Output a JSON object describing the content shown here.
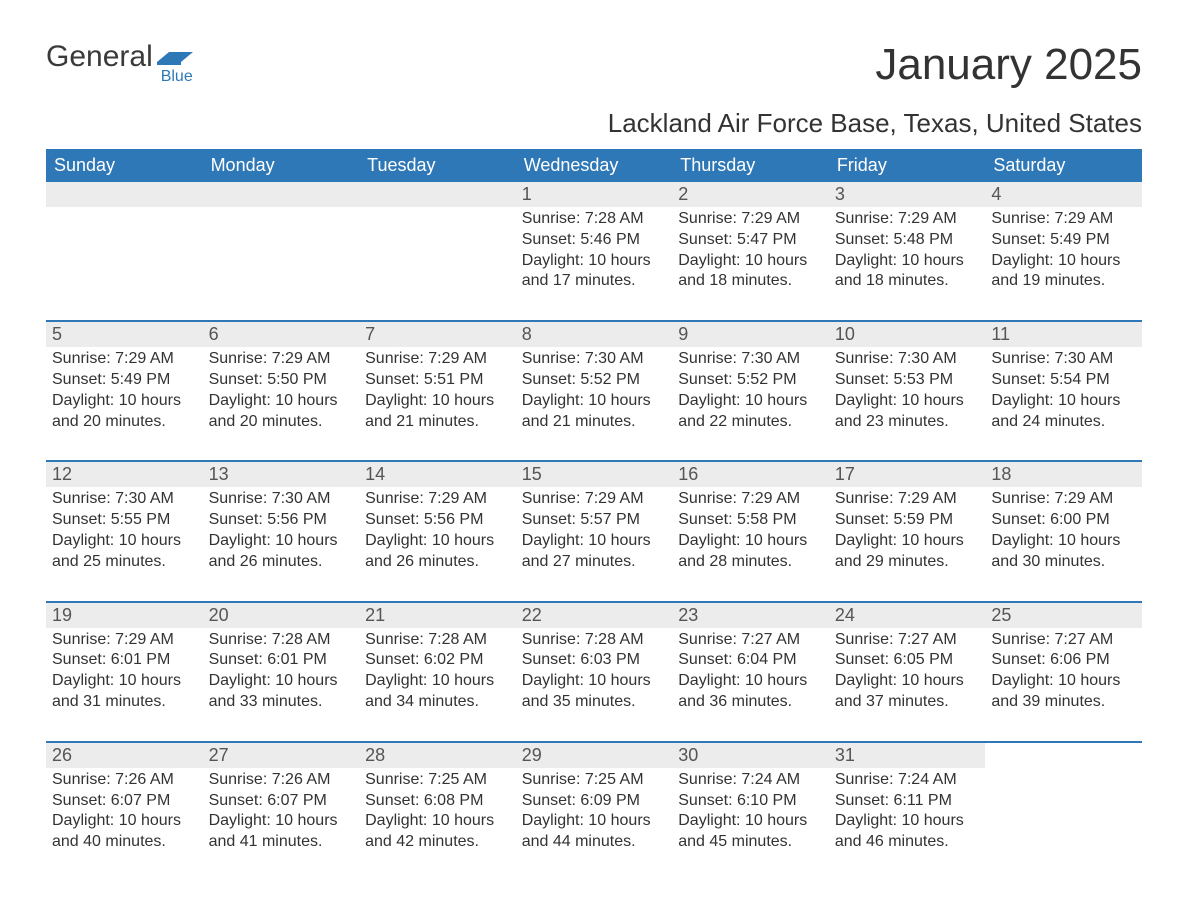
{
  "logo": {
    "general": "General",
    "blue": "Blue"
  },
  "title": "January 2025",
  "location": "Lackland Air Force Base, Texas, United States",
  "colors": {
    "header_bg": "#2f78b7",
    "header_text": "#ffffff",
    "daynum_bg": "#ececec",
    "row_border": "#2f78b7",
    "text": "#333333",
    "logo_blue": "#2f78b7"
  },
  "typography": {
    "title_fontsize": 44,
    "location_fontsize": 26,
    "dayheader_fontsize": 18,
    "daynum_fontsize": 18,
    "celltext_fontsize": 16
  },
  "calendar": {
    "type": "table",
    "columns": [
      "Sunday",
      "Monday",
      "Tuesday",
      "Wednesday",
      "Thursday",
      "Friday",
      "Saturday"
    ],
    "weeks": [
      [
        null,
        null,
        null,
        {
          "day": "1",
          "sunrise": "Sunrise: 7:28 AM",
          "sunset": "Sunset: 5:46 PM",
          "daylight": "Daylight: 10 hours and 17 minutes."
        },
        {
          "day": "2",
          "sunrise": "Sunrise: 7:29 AM",
          "sunset": "Sunset: 5:47 PM",
          "daylight": "Daylight: 10 hours and 18 minutes."
        },
        {
          "day": "3",
          "sunrise": "Sunrise: 7:29 AM",
          "sunset": "Sunset: 5:48 PM",
          "daylight": "Daylight: 10 hours and 18 minutes."
        },
        {
          "day": "4",
          "sunrise": "Sunrise: 7:29 AM",
          "sunset": "Sunset: 5:49 PM",
          "daylight": "Daylight: 10 hours and 19 minutes."
        }
      ],
      [
        {
          "day": "5",
          "sunrise": "Sunrise: 7:29 AM",
          "sunset": "Sunset: 5:49 PM",
          "daylight": "Daylight: 10 hours and 20 minutes."
        },
        {
          "day": "6",
          "sunrise": "Sunrise: 7:29 AM",
          "sunset": "Sunset: 5:50 PM",
          "daylight": "Daylight: 10 hours and 20 minutes."
        },
        {
          "day": "7",
          "sunrise": "Sunrise: 7:29 AM",
          "sunset": "Sunset: 5:51 PM",
          "daylight": "Daylight: 10 hours and 21 minutes."
        },
        {
          "day": "8",
          "sunrise": "Sunrise: 7:30 AM",
          "sunset": "Sunset: 5:52 PM",
          "daylight": "Daylight: 10 hours and 21 minutes."
        },
        {
          "day": "9",
          "sunrise": "Sunrise: 7:30 AM",
          "sunset": "Sunset: 5:52 PM",
          "daylight": "Daylight: 10 hours and 22 minutes."
        },
        {
          "day": "10",
          "sunrise": "Sunrise: 7:30 AM",
          "sunset": "Sunset: 5:53 PM",
          "daylight": "Daylight: 10 hours and 23 minutes."
        },
        {
          "day": "11",
          "sunrise": "Sunrise: 7:30 AM",
          "sunset": "Sunset: 5:54 PM",
          "daylight": "Daylight: 10 hours and 24 minutes."
        }
      ],
      [
        {
          "day": "12",
          "sunrise": "Sunrise: 7:30 AM",
          "sunset": "Sunset: 5:55 PM",
          "daylight": "Daylight: 10 hours and 25 minutes."
        },
        {
          "day": "13",
          "sunrise": "Sunrise: 7:30 AM",
          "sunset": "Sunset: 5:56 PM",
          "daylight": "Daylight: 10 hours and 26 minutes."
        },
        {
          "day": "14",
          "sunrise": "Sunrise: 7:29 AM",
          "sunset": "Sunset: 5:56 PM",
          "daylight": "Daylight: 10 hours and 26 minutes."
        },
        {
          "day": "15",
          "sunrise": "Sunrise: 7:29 AM",
          "sunset": "Sunset: 5:57 PM",
          "daylight": "Daylight: 10 hours and 27 minutes."
        },
        {
          "day": "16",
          "sunrise": "Sunrise: 7:29 AM",
          "sunset": "Sunset: 5:58 PM",
          "daylight": "Daylight: 10 hours and 28 minutes."
        },
        {
          "day": "17",
          "sunrise": "Sunrise: 7:29 AM",
          "sunset": "Sunset: 5:59 PM",
          "daylight": "Daylight: 10 hours and 29 minutes."
        },
        {
          "day": "18",
          "sunrise": "Sunrise: 7:29 AM",
          "sunset": "Sunset: 6:00 PM",
          "daylight": "Daylight: 10 hours and 30 minutes."
        }
      ],
      [
        {
          "day": "19",
          "sunrise": "Sunrise: 7:29 AM",
          "sunset": "Sunset: 6:01 PM",
          "daylight": "Daylight: 10 hours and 31 minutes."
        },
        {
          "day": "20",
          "sunrise": "Sunrise: 7:28 AM",
          "sunset": "Sunset: 6:01 PM",
          "daylight": "Daylight: 10 hours and 33 minutes."
        },
        {
          "day": "21",
          "sunrise": "Sunrise: 7:28 AM",
          "sunset": "Sunset: 6:02 PM",
          "daylight": "Daylight: 10 hours and 34 minutes."
        },
        {
          "day": "22",
          "sunrise": "Sunrise: 7:28 AM",
          "sunset": "Sunset: 6:03 PM",
          "daylight": "Daylight: 10 hours and 35 minutes."
        },
        {
          "day": "23",
          "sunrise": "Sunrise: 7:27 AM",
          "sunset": "Sunset: 6:04 PM",
          "daylight": "Daylight: 10 hours and 36 minutes."
        },
        {
          "day": "24",
          "sunrise": "Sunrise: 7:27 AM",
          "sunset": "Sunset: 6:05 PM",
          "daylight": "Daylight: 10 hours and 37 minutes."
        },
        {
          "day": "25",
          "sunrise": "Sunrise: 7:27 AM",
          "sunset": "Sunset: 6:06 PM",
          "daylight": "Daylight: 10 hours and 39 minutes."
        }
      ],
      [
        {
          "day": "26",
          "sunrise": "Sunrise: 7:26 AM",
          "sunset": "Sunset: 6:07 PM",
          "daylight": "Daylight: 10 hours and 40 minutes."
        },
        {
          "day": "27",
          "sunrise": "Sunrise: 7:26 AM",
          "sunset": "Sunset: 6:07 PM",
          "daylight": "Daylight: 10 hours and 41 minutes."
        },
        {
          "day": "28",
          "sunrise": "Sunrise: 7:25 AM",
          "sunset": "Sunset: 6:08 PM",
          "daylight": "Daylight: 10 hours and 42 minutes."
        },
        {
          "day": "29",
          "sunrise": "Sunrise: 7:25 AM",
          "sunset": "Sunset: 6:09 PM",
          "daylight": "Daylight: 10 hours and 44 minutes."
        },
        {
          "day": "30",
          "sunrise": "Sunrise: 7:24 AM",
          "sunset": "Sunset: 6:10 PM",
          "daylight": "Daylight: 10 hours and 45 minutes."
        },
        {
          "day": "31",
          "sunrise": "Sunrise: 7:24 AM",
          "sunset": "Sunset: 6:11 PM",
          "daylight": "Daylight: 10 hours and 46 minutes."
        },
        null
      ]
    ]
  }
}
